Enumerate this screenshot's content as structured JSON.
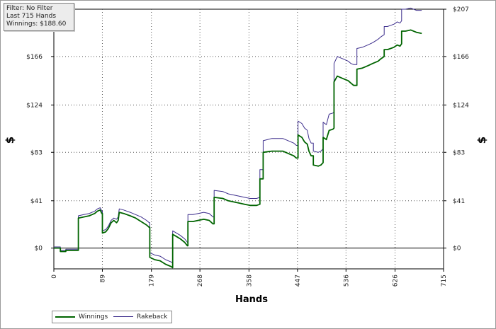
{
  "info": {
    "filter": "Filter: No Filter",
    "last": "Last  715 Hands",
    "winnings": "Winnings: $188.60"
  },
  "chart_data": {
    "type": "line",
    "xlabel": "Hands",
    "ylabel": "$",
    "xlim": [
      0,
      715
    ],
    "ylim": [
      -18,
      207
    ],
    "x_ticks": [
      "0",
      "89",
      "179",
      "268",
      "358",
      "447",
      "536",
      "626",
      "715"
    ],
    "y_ticks": [
      "$0",
      "$41",
      "$83",
      "$124",
      "$166",
      "$207"
    ],
    "grid": true,
    "legend_position": "bottom-left",
    "series": [
      {
        "name": "Winnings",
        "color": "#006400",
        "points": [
          [
            0,
            0
          ],
          [
            12,
            0
          ],
          [
            12,
            -3
          ],
          [
            22,
            -3
          ],
          [
            22,
            -2
          ],
          [
            45,
            -2
          ],
          [
            45,
            26
          ],
          [
            55,
            27
          ],
          [
            65,
            28
          ],
          [
            75,
            30
          ],
          [
            80,
            32
          ],
          [
            85,
            33
          ],
          [
            88,
            30
          ],
          [
            89,
            30
          ],
          [
            89,
            13
          ],
          [
            95,
            14
          ],
          [
            100,
            17
          ],
          [
            105,
            22
          ],
          [
            110,
            24
          ],
          [
            115,
            22
          ],
          [
            118,
            24
          ],
          [
            120,
            31
          ],
          [
            128,
            30
          ],
          [
            140,
            28
          ],
          [
            150,
            26
          ],
          [
            160,
            23
          ],
          [
            170,
            20
          ],
          [
            175,
            18
          ],
          [
            176,
            18
          ],
          [
            176,
            -8
          ],
          [
            185,
            -10
          ],
          [
            195,
            -11
          ],
          [
            205,
            -14
          ],
          [
            215,
            -16
          ],
          [
            218,
            -17
          ],
          [
            218,
            12
          ],
          [
            225,
            10
          ],
          [
            232,
            8
          ],
          [
            240,
            5
          ],
          [
            245,
            2
          ],
          [
            246,
            2
          ],
          [
            246,
            23
          ],
          [
            255,
            23
          ],
          [
            265,
            24
          ],
          [
            275,
            25
          ],
          [
            285,
            24
          ],
          [
            292,
            21
          ],
          [
            294,
            21
          ],
          [
            294,
            44
          ],
          [
            310,
            43
          ],
          [
            320,
            41
          ],
          [
            330,
            40
          ],
          [
            340,
            39
          ],
          [
            350,
            38
          ],
          [
            360,
            37
          ],
          [
            372,
            37
          ],
          [
            378,
            38
          ],
          [
            378,
            60
          ],
          [
            384,
            60
          ],
          [
            384,
            83
          ],
          [
            400,
            84
          ],
          [
            420,
            84
          ],
          [
            430,
            82
          ],
          [
            440,
            80
          ],
          [
            445,
            78
          ],
          [
            448,
            78
          ],
          [
            448,
            98
          ],
          [
            455,
            96
          ],
          [
            460,
            92
          ],
          [
            465,
            90
          ],
          [
            468,
            84
          ],
          [
            472,
            80
          ],
          [
            476,
            80
          ],
          [
            476,
            72
          ],
          [
            485,
            71
          ],
          [
            490,
            72
          ],
          [
            494,
            74
          ],
          [
            494,
            96
          ],
          [
            500,
            94
          ],
          [
            505,
            102
          ],
          [
            512,
            103
          ],
          [
            514,
            104
          ],
          [
            514,
            144
          ],
          [
            520,
            149
          ],
          [
            530,
            147
          ],
          [
            540,
            145
          ],
          [
            545,
            143
          ],
          [
            550,
            141
          ],
          [
            556,
            141
          ],
          [
            556,
            155
          ],
          [
            566,
            156
          ],
          [
            576,
            158
          ],
          [
            585,
            160
          ],
          [
            595,
            162
          ],
          [
            600,
            164
          ],
          [
            606,
            166
          ],
          [
            606,
            172
          ],
          [
            612,
            172
          ],
          [
            618,
            173
          ],
          [
            624,
            174
          ],
          [
            630,
            176
          ],
          [
            635,
            175
          ],
          [
            638,
            177
          ],
          [
            638,
            188
          ],
          [
            645,
            188
          ],
          [
            655,
            189
          ],
          [
            665,
            187
          ],
          [
            675,
            186
          ]
        ]
      },
      {
        "name": "Rakeback",
        "color": "#3c2d8c",
        "points": [
          [
            0,
            1
          ],
          [
            12,
            1
          ],
          [
            12,
            -2
          ],
          [
            22,
            -2
          ],
          [
            22,
            -1
          ],
          [
            45,
            -1
          ],
          [
            45,
            28
          ],
          [
            55,
            29
          ],
          [
            65,
            30
          ],
          [
            75,
            32
          ],
          [
            80,
            34
          ],
          [
            85,
            35
          ],
          [
            88,
            32
          ],
          [
            89,
            32
          ],
          [
            89,
            15
          ],
          [
            95,
            16
          ],
          [
            100,
            19
          ],
          [
            105,
            24
          ],
          [
            110,
            26
          ],
          [
            115,
            25
          ],
          [
            118,
            27
          ],
          [
            120,
            34
          ],
          [
            128,
            33
          ],
          [
            140,
            31
          ],
          [
            150,
            29
          ],
          [
            160,
            27
          ],
          [
            170,
            24
          ],
          [
            175,
            22
          ],
          [
            176,
            22
          ],
          [
            176,
            -4
          ],
          [
            185,
            -6
          ],
          [
            195,
            -7
          ],
          [
            205,
            -10
          ],
          [
            215,
            -12
          ],
          [
            218,
            -13
          ],
          [
            218,
            15
          ],
          [
            225,
            13
          ],
          [
            232,
            11
          ],
          [
            240,
            8
          ],
          [
            245,
            5
          ],
          [
            246,
            5
          ],
          [
            246,
            29
          ],
          [
            255,
            29
          ],
          [
            265,
            30
          ],
          [
            275,
            31
          ],
          [
            285,
            30
          ],
          [
            292,
            27
          ],
          [
            294,
            27
          ],
          [
            294,
            50
          ],
          [
            310,
            49
          ],
          [
            320,
            47
          ],
          [
            330,
            46
          ],
          [
            340,
            45
          ],
          [
            350,
            44
          ],
          [
            360,
            43
          ],
          [
            372,
            43
          ],
          [
            378,
            44
          ],
          [
            378,
            68
          ],
          [
            384,
            68
          ],
          [
            384,
            93
          ],
          [
            400,
            95
          ],
          [
            420,
            95
          ],
          [
            430,
            93
          ],
          [
            440,
            91
          ],
          [
            445,
            89
          ],
          [
            448,
            89
          ],
          [
            448,
            110
          ],
          [
            455,
            108
          ],
          [
            460,
            104
          ],
          [
            465,
            102
          ],
          [
            468,
            95
          ],
          [
            472,
            91
          ],
          [
            476,
            91
          ],
          [
            476,
            84
          ],
          [
            485,
            83
          ],
          [
            490,
            84
          ],
          [
            494,
            86
          ],
          [
            494,
            109
          ],
          [
            500,
            107
          ],
          [
            505,
            116
          ],
          [
            512,
            117
          ],
          [
            514,
            118
          ],
          [
            514,
            160
          ],
          [
            520,
            166
          ],
          [
            530,
            164
          ],
          [
            540,
            162
          ],
          [
            545,
            160
          ],
          [
            550,
            159
          ],
          [
            556,
            159
          ],
          [
            556,
            173
          ],
          [
            566,
            174
          ],
          [
            576,
            176
          ],
          [
            585,
            178
          ],
          [
            595,
            181
          ],
          [
            600,
            183
          ],
          [
            606,
            185
          ],
          [
            606,
            192
          ],
          [
            612,
            192
          ],
          [
            618,
            193
          ],
          [
            624,
            194
          ],
          [
            630,
            196
          ],
          [
            635,
            195
          ],
          [
            638,
            197
          ],
          [
            638,
            207
          ],
          [
            645,
            207
          ],
          [
            655,
            208
          ],
          [
            665,
            206
          ],
          [
            675,
            206
          ]
        ]
      }
    ]
  }
}
